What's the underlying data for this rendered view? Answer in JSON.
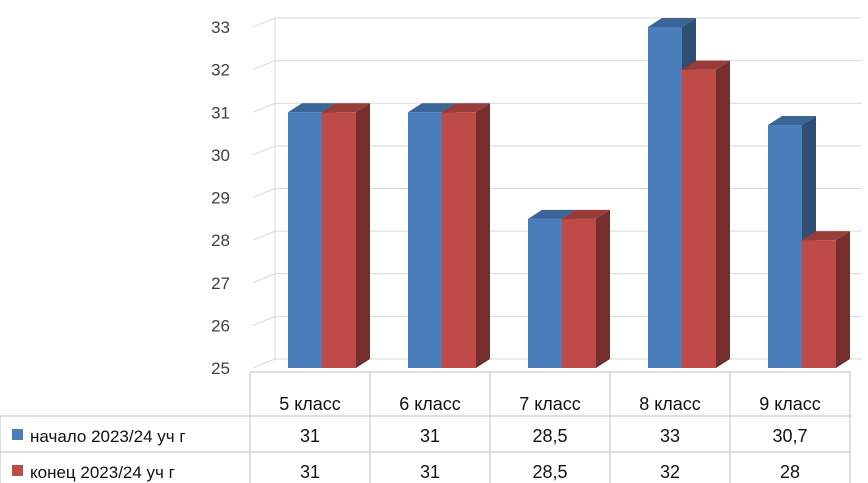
{
  "chart_data": {
    "type": "bar",
    "variant": "3d-clustered-with-data-table",
    "categories": [
      "5 класс",
      "6 класс",
      "7 класс",
      "8 класс",
      "9 класс"
    ],
    "series": [
      {
        "name": "начало 2023/24 уч г",
        "values": [
          31,
          31,
          28.5,
          33,
          30.7
        ],
        "labels": [
          "31",
          "31",
          "28,5",
          "33",
          "30,7"
        ],
        "color": "#4a7ebb"
      },
      {
        "name": "конец 2023/24 уч г",
        "values": [
          31,
          31,
          28.5,
          32,
          28
        ],
        "labels": [
          "31",
          "31",
          "28,5",
          "32",
          "28"
        ],
        "color": "#be4b48"
      }
    ],
    "y_ticks": [
      "25",
      "26",
      "27",
      "28",
      "29",
      "30",
      "31",
      "32",
      "33"
    ],
    "ylim": [
      25,
      33
    ],
    "grid": true,
    "legend": "data-table-left"
  }
}
